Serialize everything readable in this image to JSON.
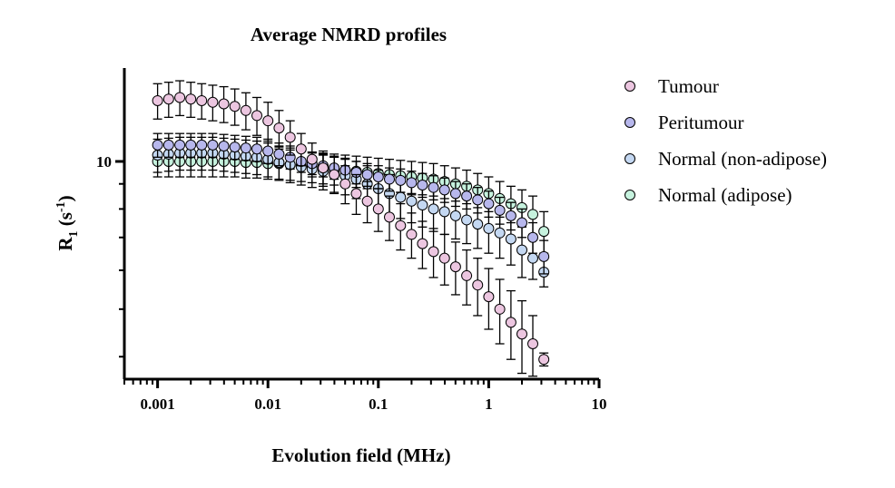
{
  "chart_data": {
    "type": "scatter",
    "title": "Average NMRD profiles",
    "xlabel": "Evolution field (MHz)",
    "ylabel": {
      "main": "R",
      "sub": "1",
      "unit_open": " (s",
      "sup": "-1",
      "unit_close": ")"
    },
    "x_scale": "log",
    "y_scale": "log",
    "xlim": [
      0.0005,
      10
    ],
    "ylim": [
      3.6,
      15.5
    ],
    "x_ticks": [
      {
        "value": 0.001,
        "label": "0.001"
      },
      {
        "value": 0.01,
        "label": "0.01"
      },
      {
        "value": 0.1,
        "label": "0.1"
      },
      {
        "value": 1,
        "label": "1"
      },
      {
        "value": 10,
        "label": "10"
      }
    ],
    "y_ticks": [
      {
        "value": 10,
        "label": "10"
      }
    ],
    "x": [
      0.001,
      0.00126,
      0.00159,
      0.002,
      0.00251,
      0.00316,
      0.00398,
      0.00501,
      0.00631,
      0.00794,
      0.01,
      0.0126,
      0.0159,
      0.02,
      0.0251,
      0.0316,
      0.0398,
      0.0501,
      0.0631,
      0.0794,
      0.1,
      0.126,
      0.159,
      0.2,
      0.251,
      0.316,
      0.398,
      0.501,
      0.631,
      0.794,
      1,
      1.26,
      1.59,
      2,
      2.51,
      3.16
    ],
    "series": [
      {
        "name": "Tumour",
        "color": "#ecc6e0",
        "values": [
          13.3,
          13.4,
          13.5,
          13.4,
          13.3,
          13.2,
          13.1,
          12.95,
          12.7,
          12.4,
          12.1,
          11.7,
          11.2,
          10.6,
          10.1,
          9.7,
          9.4,
          9.0,
          8.6,
          8.3,
          8.0,
          7.7,
          7.4,
          7.1,
          6.8,
          6.55,
          6.35,
          6.1,
          5.85,
          5.6,
          5.3,
          5.0,
          4.7,
          4.45,
          4.25,
          3.95
        ],
        "err": [
          1.1,
          1.1,
          1.1,
          1.1,
          1.1,
          1.1,
          1.1,
          1.1,
          1.1,
          1.1,
          1.1,
          1.0,
          0.9,
          0.8,
          0.8,
          0.8,
          0.8,
          0.8,
          0.8,
          0.8,
          0.8,
          0.8,
          0.8,
          0.75,
          0.75,
          0.75,
          0.75,
          0.75,
          0.75,
          0.75,
          0.75,
          0.75,
          0.75,
          0.75,
          0.6,
          0.12
        ]
      },
      {
        "name": "Peritumour",
        "color": "#b7b7ec",
        "values": [
          10.8,
          10.8,
          10.8,
          10.8,
          10.8,
          10.8,
          10.75,
          10.7,
          10.65,
          10.6,
          10.5,
          10.35,
          10.2,
          10.0,
          9.9,
          9.8,
          9.7,
          9.6,
          9.5,
          9.4,
          9.3,
          9.2,
          9.15,
          9.05,
          8.95,
          8.85,
          8.75,
          8.6,
          8.5,
          8.35,
          8.2,
          7.95,
          7.75,
          7.5,
          7.0,
          6.4
        ],
        "err": [
          0.6,
          0.6,
          0.6,
          0.6,
          0.6,
          0.6,
          0.6,
          0.6,
          0.6,
          0.6,
          0.6,
          0.55,
          0.55,
          0.5,
          0.5,
          0.5,
          0.5,
          0.5,
          0.5,
          0.5,
          0.5,
          0.5,
          0.5,
          0.5,
          0.5,
          0.5,
          0.5,
          0.5,
          0.5,
          0.5,
          0.5,
          0.5,
          0.5,
          0.5,
          0.5,
          0.5
        ]
      },
      {
        "name": "Normal (non-adipose)",
        "color": "#c4d8f2",
        "values": [
          10.3,
          10.35,
          10.4,
          10.4,
          10.4,
          10.4,
          10.35,
          10.3,
          10.25,
          10.2,
          10.1,
          9.95,
          9.85,
          9.75,
          9.65,
          9.55,
          9.45,
          9.35,
          9.2,
          9.0,
          8.8,
          8.6,
          8.45,
          8.3,
          8.15,
          8.0,
          7.9,
          7.75,
          7.6,
          7.45,
          7.3,
          7.15,
          6.95,
          6.6,
          6.35,
          5.95
        ],
        "err": [
          0.8,
          0.8,
          0.8,
          0.8,
          0.8,
          0.8,
          0.8,
          0.8,
          0.8,
          0.8,
          0.8,
          0.8,
          0.8,
          0.8,
          0.8,
          0.8,
          0.8,
          0.8,
          0.8,
          0.8,
          0.8,
          0.8,
          0.8,
          0.8,
          0.8,
          0.8,
          0.8,
          0.8,
          0.8,
          0.8,
          0.8,
          0.8,
          0.8,
          0.8,
          0.6,
          0.4
        ]
      },
      {
        "name": "Normal (adipose)",
        "color": "#c6f2de",
        "values": [
          10.0,
          10.0,
          10.0,
          10.0,
          10.0,
          10.0,
          10.0,
          10.0,
          9.95,
          9.95,
          9.9,
          9.9,
          9.85,
          9.8,
          9.75,
          9.7,
          9.65,
          9.6,
          9.55,
          9.5,
          9.45,
          9.4,
          9.35,
          9.3,
          9.25,
          9.2,
          9.1,
          9.0,
          8.9,
          8.75,
          8.6,
          8.4,
          8.2,
          8.05,
          7.8,
          7.2
        ],
        "err": [
          0.7,
          0.7,
          0.7,
          0.7,
          0.7,
          0.7,
          0.7,
          0.7,
          0.7,
          0.7,
          0.7,
          0.7,
          0.7,
          0.7,
          0.7,
          0.7,
          0.7,
          0.7,
          0.7,
          0.7,
          0.7,
          0.7,
          0.7,
          0.7,
          0.7,
          0.7,
          0.7,
          0.7,
          0.7,
          0.7,
          0.7,
          0.7,
          0.7,
          0.7,
          0.7,
          0.7
        ]
      }
    ],
    "legend_position": "right"
  }
}
